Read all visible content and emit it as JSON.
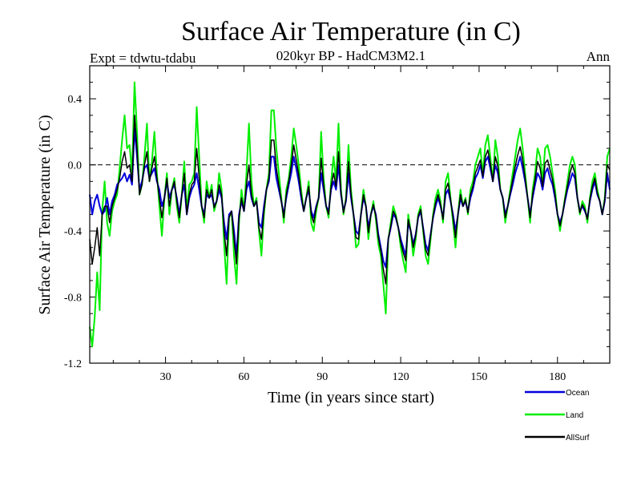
{
  "header": {
    "title": "Surface Air Temperature (in C)",
    "subtitle": "020kyr BP - HadCM3M2.1",
    "expt_label": "Expt = tdwtu-tdabu",
    "season_label": "Ann"
  },
  "chart_data": {
    "type": "line",
    "title": "Surface Air Temperature (in C)",
    "subtitle": "020kyr BP - HadCM3M2.1",
    "xlabel": "Time (in years since start)",
    "ylabel": "Surface Air Temperature (in C)",
    "xlim": [
      1,
      200
    ],
    "ylim": [
      -1.2,
      0.6
    ],
    "x_ticks": [
      30,
      60,
      90,
      120,
      150,
      180
    ],
    "x_tick_labels": [
      "30",
      "60",
      "90",
      "120",
      "150",
      "180"
    ],
    "y_ticks": [
      -1.2,
      -0.8,
      -0.4,
      0.0,
      0.4
    ],
    "y_tick_labels": [
      "-1.2",
      "-0.8",
      "-0.4",
      "0.0",
      "0.4"
    ],
    "reference_line": 0.0,
    "legend_position": "bottom-right",
    "series": [
      {
        "name": "Land",
        "color": "#00ee00",
        "values": [
          -0.98,
          -1.1,
          -0.92,
          -0.65,
          -0.88,
          -0.28,
          -0.1,
          -0.35,
          -0.43,
          -0.28,
          -0.22,
          -0.18,
          -0.02,
          0.15,
          0.3,
          0.1,
          0.12,
          -0.05,
          0.5,
          0.2,
          -0.18,
          -0.12,
          0.05,
          0.25,
          -0.1,
          0.02,
          0.2,
          -0.05,
          -0.25,
          -0.43,
          -0.2,
          -0.05,
          -0.3,
          -0.15,
          -0.08,
          -0.25,
          -0.35,
          -0.18,
          0.02,
          -0.28,
          -0.12,
          -0.1,
          -0.05,
          0.35,
          0.05,
          -0.25,
          -0.35,
          -0.1,
          -0.2,
          -0.12,
          -0.28,
          -0.22,
          -0.05,
          -0.15,
          -0.48,
          -0.72,
          -0.32,
          -0.28,
          -0.55,
          -0.72,
          -0.35,
          -0.15,
          -0.28,
          -0.05,
          0.25,
          -0.1,
          -0.25,
          -0.2,
          -0.4,
          -0.55,
          -0.3,
          -0.15,
          -0.05,
          0.33,
          0.33,
          0.1,
          -0.05,
          -0.2,
          -0.35,
          -0.15,
          -0.08,
          0.05,
          0.22,
          0.12,
          0.0,
          -0.15,
          -0.28,
          -0.2,
          -0.1,
          -0.35,
          -0.4,
          -0.28,
          -0.2,
          0.2,
          -0.08,
          -0.25,
          -0.32,
          -0.1,
          0.05,
          -0.1,
          0.25,
          -0.15,
          -0.3,
          -0.2,
          0.12,
          -0.15,
          -0.3,
          -0.5,
          -0.48,
          -0.3,
          -0.15,
          -0.25,
          -0.45,
          -0.3,
          -0.22,
          -0.33,
          -0.48,
          -0.55,
          -0.72,
          -0.9,
          -0.45,
          -0.35,
          -0.25,
          -0.3,
          -0.38,
          -0.5,
          -0.58,
          -0.65,
          -0.3,
          -0.4,
          -0.55,
          -0.45,
          -0.3,
          -0.25,
          -0.4,
          -0.55,
          -0.6,
          -0.45,
          -0.3,
          -0.2,
          -0.15,
          -0.22,
          -0.35,
          -0.1,
          -0.05,
          -0.2,
          -0.35,
          -0.5,
          -0.3,
          -0.15,
          -0.25,
          -0.2,
          -0.3,
          -0.15,
          -0.1,
          0.0,
          0.05,
          0.1,
          -0.05,
          0.12,
          0.18,
          0.05,
          -0.1,
          0.15,
          0.05,
          -0.15,
          -0.2,
          -0.35,
          -0.25,
          -0.15,
          -0.05,
          0.05,
          0.15,
          0.22,
          0.1,
          -0.05,
          -0.2,
          -0.35,
          -0.15,
          -0.05,
          0.1,
          0.05,
          -0.1,
          0.1,
          0.12,
          0.05,
          -0.05,
          -0.15,
          -0.3,
          -0.4,
          -0.3,
          -0.2,
          -0.1,
          0.0,
          0.05,
          0.0,
          -0.2,
          -0.3,
          -0.22,
          -0.25,
          -0.35,
          -0.2,
          -0.1,
          -0.05,
          -0.15,
          -0.22,
          -0.3,
          -0.2,
          0.05,
          0.1
        ]
      },
      {
        "name": "Ocean",
        "color": "#0000dd",
        "values": [
          -0.18,
          -0.3,
          -0.22,
          -0.18,
          -0.25,
          -0.3,
          -0.28,
          -0.2,
          -0.3,
          -0.22,
          -0.18,
          -0.12,
          -0.1,
          -0.08,
          -0.05,
          -0.1,
          -0.06,
          -0.12,
          0.22,
          0.05,
          -0.15,
          -0.1,
          -0.02,
          0.0,
          -0.08,
          -0.05,
          -0.02,
          -0.1,
          -0.15,
          -0.25,
          -0.2,
          -0.1,
          -0.2,
          -0.15,
          -0.12,
          -0.2,
          -0.3,
          -0.18,
          -0.12,
          -0.3,
          -0.2,
          -0.15,
          -0.12,
          -0.05,
          -0.15,
          -0.25,
          -0.3,
          -0.18,
          -0.2,
          -0.18,
          -0.25,
          -0.22,
          -0.15,
          -0.2,
          -0.35,
          -0.45,
          -0.3,
          -0.28,
          -0.4,
          -0.55,
          -0.3,
          -0.22,
          -0.28,
          -0.15,
          -0.1,
          -0.2,
          -0.25,
          -0.22,
          -0.35,
          -0.38,
          -0.25,
          -0.15,
          -0.1,
          0.05,
          0.05,
          -0.08,
          -0.15,
          -0.22,
          -0.3,
          -0.2,
          -0.12,
          -0.05,
          0.05,
          -0.02,
          -0.1,
          -0.2,
          -0.28,
          -0.2,
          -0.15,
          -0.28,
          -0.32,
          -0.25,
          -0.2,
          -0.05,
          -0.15,
          -0.25,
          -0.28,
          -0.15,
          -0.1,
          -0.15,
          0.0,
          -0.18,
          -0.28,
          -0.22,
          -0.05,
          -0.2,
          -0.3,
          -0.4,
          -0.42,
          -0.3,
          -0.2,
          -0.25,
          -0.38,
          -0.3,
          -0.25,
          -0.3,
          -0.42,
          -0.5,
          -0.58,
          -0.62,
          -0.45,
          -0.38,
          -0.3,
          -0.32,
          -0.38,
          -0.45,
          -0.5,
          -0.55,
          -0.35,
          -0.4,
          -0.48,
          -0.42,
          -0.32,
          -0.28,
          -0.38,
          -0.48,
          -0.52,
          -0.42,
          -0.32,
          -0.25,
          -0.2,
          -0.25,
          -0.32,
          -0.18,
          -0.15,
          -0.22,
          -0.3,
          -0.4,
          -0.3,
          -0.2,
          -0.25,
          -0.22,
          -0.28,
          -0.2,
          -0.15,
          -0.08,
          -0.05,
          0.0,
          -0.08,
          0.02,
          0.05,
          -0.02,
          -0.1,
          0.0,
          -0.05,
          -0.15,
          -0.2,
          -0.3,
          -0.25,
          -0.18,
          -0.12,
          -0.05,
          0.0,
          0.05,
          -0.02,
          -0.1,
          -0.2,
          -0.3,
          -0.2,
          -0.12,
          -0.05,
          -0.08,
          -0.15,
          -0.05,
          -0.02,
          -0.08,
          -0.12,
          -0.2,
          -0.3,
          -0.35,
          -0.3,
          -0.22,
          -0.15,
          -0.1,
          -0.05,
          -0.08,
          -0.2,
          -0.28,
          -0.25,
          -0.28,
          -0.32,
          -0.22,
          -0.15,
          -0.1,
          -0.18,
          -0.22,
          -0.3,
          -0.22,
          -0.05,
          -0.15
        ]
      },
      {
        "name": "AllSurf",
        "color": "#000000",
        "values": [
          -0.45,
          -0.6,
          -0.5,
          -0.38,
          -0.55,
          -0.3,
          -0.25,
          -0.25,
          -0.35,
          -0.25,
          -0.2,
          -0.15,
          -0.08,
          0.02,
          0.08,
          -0.02,
          0.0,
          -0.1,
          0.3,
          0.1,
          -0.18,
          -0.12,
          0.0,
          0.08,
          -0.1,
          -0.02,
          0.05,
          -0.08,
          -0.2,
          -0.32,
          -0.2,
          -0.08,
          -0.25,
          -0.15,
          -0.1,
          -0.22,
          -0.32,
          -0.18,
          -0.05,
          -0.3,
          -0.18,
          -0.12,
          -0.1,
          0.1,
          -0.08,
          -0.25,
          -0.32,
          -0.15,
          -0.2,
          -0.15,
          -0.26,
          -0.22,
          -0.12,
          -0.18,
          -0.4,
          -0.55,
          -0.32,
          -0.28,
          -0.45,
          -0.6,
          -0.32,
          -0.2,
          -0.28,
          -0.12,
          0.0,
          -0.18,
          -0.25,
          -0.22,
          -0.38,
          -0.45,
          -0.28,
          -0.15,
          -0.08,
          0.15,
          0.15,
          -0.02,
          -0.12,
          -0.22,
          -0.32,
          -0.18,
          -0.1,
          0.0,
          0.12,
          0.03,
          -0.06,
          -0.18,
          -0.28,
          -0.2,
          -0.13,
          -0.3,
          -0.35,
          -0.26,
          -0.2,
          0.04,
          -0.12,
          -0.25,
          -0.3,
          -0.13,
          -0.05,
          -0.13,
          0.08,
          -0.17,
          -0.29,
          -0.21,
          0.02,
          -0.18,
          -0.3,
          -0.44,
          -0.45,
          -0.3,
          -0.18,
          -0.25,
          -0.41,
          -0.3,
          -0.24,
          -0.31,
          -0.44,
          -0.52,
          -0.63,
          -0.72,
          -0.45,
          -0.37,
          -0.28,
          -0.31,
          -0.38,
          -0.47,
          -0.53,
          -0.58,
          -0.33,
          -0.4,
          -0.5,
          -0.43,
          -0.31,
          -0.27,
          -0.39,
          -0.51,
          -0.55,
          -0.43,
          -0.31,
          -0.23,
          -0.18,
          -0.24,
          -0.33,
          -0.15,
          -0.11,
          -0.21,
          -0.32,
          -0.44,
          -0.3,
          -0.18,
          -0.25,
          -0.21,
          -0.29,
          -0.18,
          -0.13,
          -0.05,
          -0.01,
          0.03,
          -0.07,
          0.05,
          0.09,
          0.01,
          -0.1,
          0.05,
          -0.01,
          -0.15,
          -0.2,
          -0.32,
          -0.25,
          -0.17,
          -0.09,
          -0.01,
          0.06,
          0.11,
          0.03,
          -0.08,
          -0.2,
          -0.32,
          -0.18,
          -0.09,
          0.02,
          -0.02,
          -0.13,
          0.01,
          0.03,
          -0.03,
          -0.09,
          -0.18,
          -0.3,
          -0.37,
          -0.3,
          -0.21,
          -0.13,
          -0.05,
          0.0,
          -0.05,
          -0.2,
          -0.29,
          -0.24,
          -0.27,
          -0.33,
          -0.21,
          -0.13,
          -0.08,
          -0.17,
          -0.22,
          -0.3,
          -0.21,
          0.0,
          -0.03
        ]
      }
    ]
  }
}
